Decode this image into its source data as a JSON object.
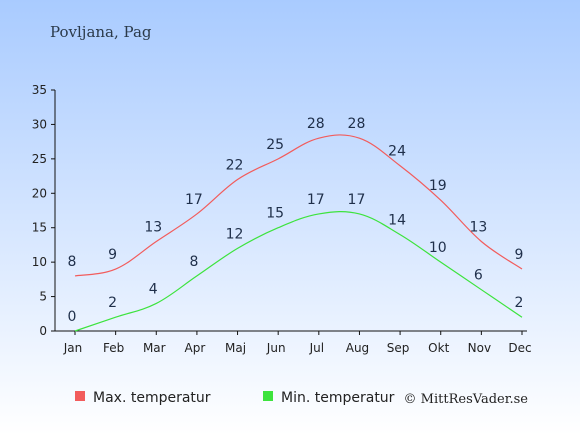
{
  "chart_data": {
    "type": "line",
    "title": "Povljana, Pag",
    "categories": [
      "Jan",
      "Feb",
      "Mar",
      "Apr",
      "Maj",
      "Jun",
      "Jul",
      "Aug",
      "Sep",
      "Okt",
      "Nov",
      "Dec"
    ],
    "series": [
      {
        "name": "Max. temperatur",
        "color": "#f25c5c",
        "values": [
          8,
          9,
          13,
          17,
          22,
          25,
          28,
          28,
          24,
          19,
          13,
          9
        ]
      },
      {
        "name": "Min. temperatur",
        "color": "#3de33d",
        "values": [
          0,
          2,
          4,
          8,
          12,
          15,
          17,
          17,
          14,
          10,
          6,
          2
        ]
      }
    ],
    "ylim": [
      0,
      35
    ],
    "yticks": [
      "0",
      "5",
      "10",
      "15",
      "20",
      "25",
      "30",
      "35"
    ],
    "grid": false,
    "legend": "bottom-left",
    "background": {
      "top": "#a9cbff",
      "bottom": "#ffffff"
    }
  },
  "credit": "© MittResVader.se"
}
